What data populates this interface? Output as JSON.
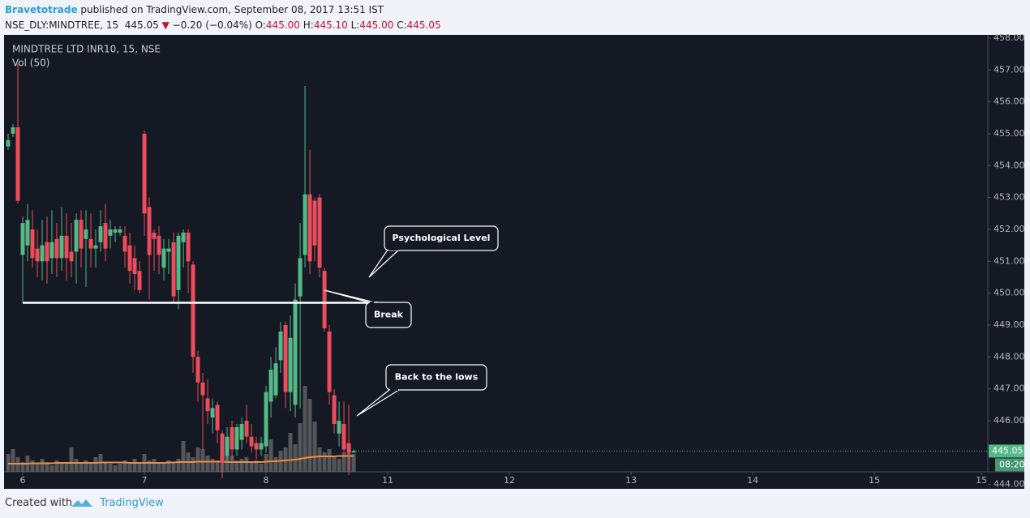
{
  "header": {
    "author": "Bravetotrade",
    "published": "published on TradingView.com, September 08, 2017 13:51 IST",
    "symbol": "NSE_DLY:MINDTREE, 15",
    "last": "445.05",
    "arrow": "▼",
    "change": "−0.20 (−0.04%)",
    "o_label": "O:",
    "o": "445.00",
    "h_label": "H:",
    "h": "445.10",
    "l_label": "L:",
    "l": "445.00",
    "c_label": "C:",
    "c": "445.05"
  },
  "chart_data": {
    "type": "candlestick",
    "title": "MINDTREE LTD INR10, 15, NSE",
    "subtitle": "Vol (50)",
    "x": [
      -3,
      -2,
      -1,
      0,
      1,
      2,
      3,
      4,
      5,
      6,
      7,
      8,
      9,
      10,
      11,
      12,
      13,
      14,
      15,
      16,
      17,
      18,
      19,
      20,
      21,
      22,
      23,
      24,
      25,
      26,
      27,
      28,
      29,
      30,
      31,
      32,
      33,
      34,
      35,
      36,
      37,
      38,
      39,
      40,
      41,
      42,
      43,
      44,
      45,
      46,
      47,
      48,
      49,
      50,
      51,
      52,
      53,
      54,
      55,
      56,
      57,
      58,
      59,
      60,
      61,
      62,
      63,
      64,
      65,
      66,
      67,
      68
    ],
    "open": [
      454.6,
      455,
      455.2,
      451.2,
      451.5,
      452,
      451.4,
      451.0,
      451.6,
      451.1,
      451.7,
      451.1,
      451.8,
      451.3,
      451.3,
      452.3,
      451.7,
      451.7,
      451.4,
      451.6,
      452.2,
      451.8,
      451.9,
      451.9,
      451.8,
      451.5,
      451.1,
      450.7,
      455,
      452.7,
      451.9,
      451.8,
      450.8,
      451.3,
      451.6,
      450.1,
      451.6,
      451.9,
      450.9,
      448,
      447.2,
      446.7,
      446.1,
      446.5,
      445.6,
      444.9,
      445.8,
      445.1,
      445.4,
      446,
      445.5,
      445.3,
      445.1,
      445.2,
      446.6,
      446.8,
      447.9,
      449,
      446.9,
      446.5,
      449.9,
      451.2,
      453.1,
      452.9,
      453.0,
      450.7,
      448.8,
      446.8,
      445.6,
      445.9,
      445.3,
      445.0
    ],
    "high": [
      455,
      455.3,
      457.2,
      452.4,
      452.8,
      452.6,
      452,
      452.3,
      452.4,
      452.6,
      452.2,
      452.7,
      452.5,
      452.2,
      452.5,
      452.6,
      452.6,
      452.5,
      452,
      452.6,
      452.8,
      452.3,
      452.1,
      452.1,
      452.1,
      451.9,
      451.5,
      451,
      455.1,
      453,
      452,
      452.1,
      451.7,
      451.7,
      451.9,
      451.9,
      452,
      452,
      451,
      448.2,
      447.5,
      447.3,
      446.7,
      446.6,
      445.7,
      445.8,
      446,
      445.9,
      446.1,
      446.5,
      445.9,
      445.5,
      445.5,
      447.1,
      448,
      448.3,
      449.1,
      449.1,
      449.3,
      450.3,
      452.2,
      456.5,
      454.5,
      453,
      453.1,
      450.8,
      449,
      447,
      446.6,
      446.6,
      446.5,
      445.1
    ],
    "low": [
      454.5,
      454.9,
      452.8,
      449.7,
      451,
      450.8,
      450.5,
      450.4,
      450.3,
      450.6,
      450.5,
      450.7,
      450.4,
      450.5,
      450.3,
      450.8,
      450.2,
      450.8,
      450.8,
      451.3,
      451,
      451.4,
      451.6,
      451.8,
      450.8,
      450.3,
      450.1,
      450,
      451.8,
      449.8,
      450.7,
      450.6,
      450.4,
      450.6,
      449.7,
      449.5,
      450.8,
      450,
      447.5,
      446.6,
      445.1,
      445.9,
      445.6,
      445.3,
      444.2,
      444.7,
      444.8,
      444.9,
      445.1,
      445.3,
      445,
      444.8,
      444.9,
      445,
      446.1,
      446.7,
      447.5,
      446.4,
      446.3,
      446.1,
      446.4,
      450.8,
      450.6,
      451,
      450.5,
      448.8,
      446.5,
      445.6,
      445.2,
      445,
      444.3,
      445
    ],
    "close": [
      454.8,
      455.2,
      452.9,
      452.2,
      452.3,
      451.1,
      451,
      451.5,
      451,
      451.6,
      451.1,
      451.8,
      451.1,
      451,
      452.3,
      451.4,
      452,
      451.4,
      451.5,
      452.1,
      451.4,
      452,
      452,
      452,
      451.3,
      450.7,
      450.6,
      450.1,
      452.5,
      451.2,
      451.7,
      451.2,
      451.4,
      451.4,
      449.9,
      451.8,
      451.9,
      451,
      448,
      447.2,
      446.8,
      446.3,
      446.4,
      445.7,
      444.7,
      445.5,
      445.1,
      445.8,
      445.9,
      445.5,
      445.2,
      445.1,
      445.3,
      446.9,
      447.6,
      447.8,
      448.8,
      446.9,
      448.6,
      449.8,
      451.1,
      453.1,
      451,
      451.5,
      450.8,
      448.9,
      446.9,
      445.9,
      446,
      445.1,
      445,
      445.05
    ],
    "volume": [
      22,
      28,
      18,
      12,
      20,
      14,
      10,
      16,
      12,
      8,
      14,
      10,
      12,
      30,
      16,
      12,
      14,
      10,
      18,
      22,
      12,
      10,
      8,
      10,
      14,
      12,
      16,
      10,
      22,
      14,
      16,
      12,
      10,
      14,
      12,
      16,
      38,
      24,
      18,
      30,
      28,
      20,
      16,
      14,
      18,
      22,
      20,
      14,
      16,
      18,
      12,
      14,
      10,
      22,
      40,
      18,
      26,
      30,
      48,
      34,
      60,
      106,
      90,
      62,
      30,
      24,
      28,
      20,
      16,
      24,
      30,
      22
    ],
    "volume_ma": [
      10,
      10,
      10,
      10,
      10,
      10.5,
      10.5,
      10.5,
      10.5,
      10.5,
      11,
      11,
      11,
      11,
      11,
      11,
      11,
      11,
      11,
      11.5,
      11.5,
      11.5,
      11.5,
      11.5,
      11.5,
      11,
      11,
      11,
      11,
      11,
      11,
      11,
      11,
      11.5,
      11.5,
      12,
      12,
      12,
      12,
      12.5,
      12.5,
      12.5,
      12.5,
      12.5,
      12.5,
      12,
      12,
      12,
      12,
      12,
      12,
      12,
      12,
      12.5,
      13,
      13,
      13.5,
      14,
      14.5,
      15,
      16,
      17,
      18,
      18.5,
      19,
      19,
      19,
      19,
      19.5,
      19.5,
      19.5,
      19.5
    ],
    "volume_lim": [
      0,
      100
    ],
    "up_color": "#53b987",
    "down_color": "#eb4d5c",
    "volume_color": "#6b6b6b",
    "ma_color": "#f28c3c",
    "ylim": [
      444.4,
      458.1
    ],
    "yticks": [
      {
        "value": 444,
        "label": "444.00"
      },
      {
        "value": 445,
        "label": "445.00"
      },
      {
        "value": 446,
        "label": "446.00"
      },
      {
        "value": 447,
        "label": "447.00"
      },
      {
        "value": 448,
        "label": "448.00"
      },
      {
        "value": 449,
        "label": "449.00"
      },
      {
        "value": 450,
        "label": "450.00"
      },
      {
        "value": 451,
        "label": "451.00"
      },
      {
        "value": 452,
        "label": "452.00"
      },
      {
        "value": 453,
        "label": "453.00"
      },
      {
        "value": 454,
        "label": "454.00"
      },
      {
        "value": 455,
        "label": "455.00"
      },
      {
        "value": 456,
        "label": "456.00"
      },
      {
        "value": 457,
        "label": "457.00"
      },
      {
        "value": 458,
        "label": "458.00"
      }
    ],
    "xlim": [
      -3.5,
      198.3
    ],
    "xticks": [
      {
        "value": 0,
        "label": "6"
      },
      {
        "value": 25,
        "label": "7"
      },
      {
        "value": 50,
        "label": "8"
      },
      {
        "value": 75,
        "label": "11"
      },
      {
        "value": 100,
        "label": "12"
      },
      {
        "value": 125,
        "label": "13"
      },
      {
        "value": 150,
        "label": "14"
      },
      {
        "value": 175,
        "label": "15"
      },
      {
        "value": 197,
        "label": "15"
      }
    ],
    "level": 449.7,
    "price_tag": "445.05",
    "countdown": "08:20",
    "annotations": [
      "Psychological Level",
      "Break",
      "Back to the lows"
    ]
  },
  "footer": {
    "created_with": "Created with",
    "brand": "TradingView"
  }
}
